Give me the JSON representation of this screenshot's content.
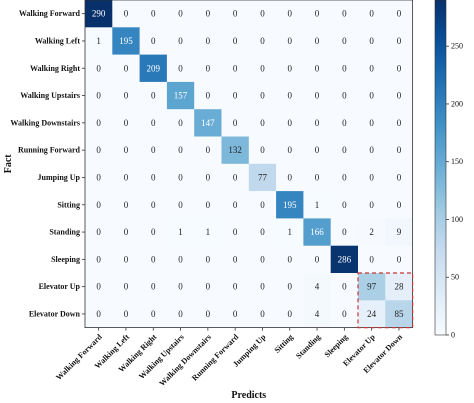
{
  "chart_data": {
    "type": "heatmap",
    "xlabel": "Predicts",
    "ylabel": "Fact",
    "row_labels": [
      "Walking Forward",
      "Walking Left",
      "Walking Right",
      "Walking Upstairs",
      "Walking Downstairs",
      "Running Forward",
      "Jumping Up",
      "Sitting",
      "Standing",
      "Sleeping",
      "Elevator Up",
      "Elevator Down"
    ],
    "col_labels": [
      "Walking Forward",
      "Walking Left",
      "Walking Right",
      "Walking Upstairs",
      "Walking Downstairs",
      "Running Forward",
      "Jumping Up",
      "Sitting",
      "Standing",
      "Sleeping",
      "Elevator Up",
      "Elevator Down"
    ],
    "values": [
      [
        290,
        0,
        0,
        0,
        0,
        0,
        0,
        0,
        0,
        0,
        0,
        0
      ],
      [
        1,
        195,
        0,
        0,
        0,
        0,
        0,
        0,
        0,
        0,
        0,
        0
      ],
      [
        0,
        0,
        209,
        0,
        0,
        0,
        0,
        0,
        0,
        0,
        0,
        0
      ],
      [
        0,
        0,
        0,
        157,
        0,
        0,
        0,
        0,
        0,
        0,
        0,
        0
      ],
      [
        0,
        0,
        0,
        0,
        147,
        0,
        0,
        0,
        0,
        0,
        0,
        0
      ],
      [
        0,
        0,
        0,
        0,
        0,
        132,
        0,
        0,
        0,
        0,
        0,
        0
      ],
      [
        0,
        0,
        0,
        0,
        0,
        0,
        77,
        0,
        0,
        0,
        0,
        0
      ],
      [
        0,
        0,
        0,
        0,
        0,
        0,
        0,
        195,
        1,
        0,
        0,
        0
      ],
      [
        0,
        0,
        0,
        1,
        1,
        0,
        0,
        1,
        166,
        0,
        2,
        9
      ],
      [
        0,
        0,
        0,
        0,
        0,
        0,
        0,
        0,
        0,
        286,
        0,
        0
      ],
      [
        0,
        0,
        0,
        0,
        0,
        0,
        0,
        0,
        4,
        0,
        97,
        28
      ],
      [
        0,
        0,
        0,
        0,
        0,
        0,
        0,
        0,
        4,
        0,
        24,
        85
      ]
    ],
    "colorbar": {
      "min": 0,
      "max": 290,
      "ticks": [
        0,
        50,
        100,
        150,
        200,
        250
      ],
      "colormap": "Blues"
    },
    "highlight": {
      "rows": [
        10,
        11
      ],
      "cols": [
        10,
        11
      ],
      "color": "#cc3333",
      "style": "dashed"
    }
  }
}
